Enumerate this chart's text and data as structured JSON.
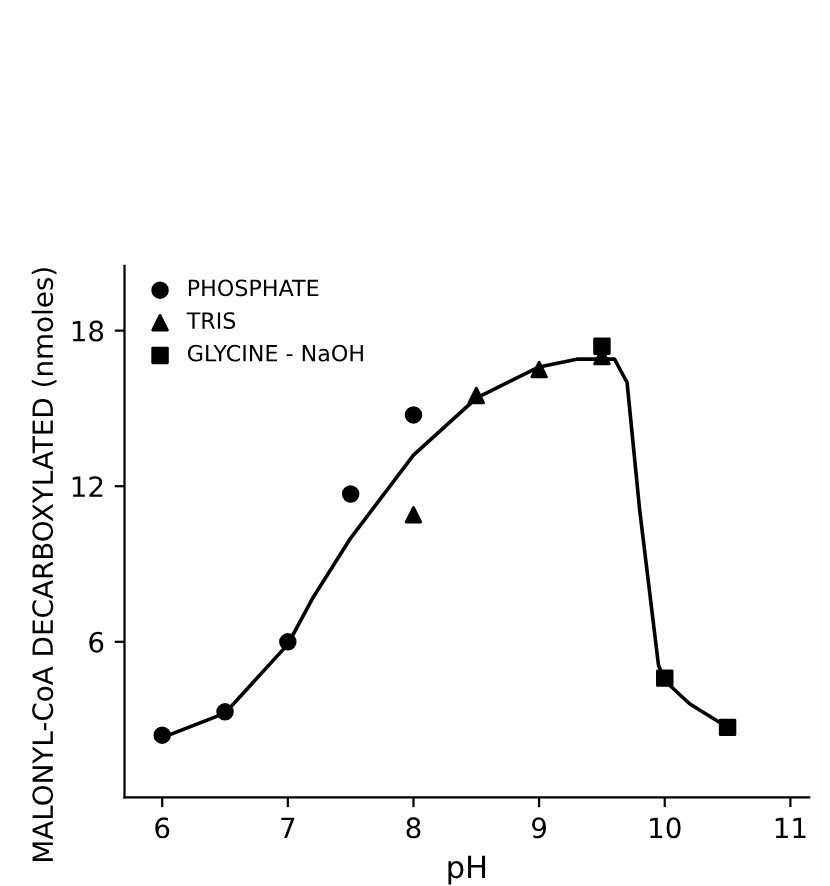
{
  "chart_data": {
    "type": "scatter",
    "xlabel": "pH",
    "ylabel": "MALONYL-CoA DECARBOXYLATED (nmoles)",
    "xlim": [
      5.7,
      11.15
    ],
    "ylim": [
      0,
      20.5
    ],
    "xticks": [
      6,
      7,
      8,
      9,
      10,
      11
    ],
    "yticks": [
      6,
      12,
      18
    ],
    "grid": false,
    "legend": "top left",
    "series": [
      {
        "name": "PHOSPHATE",
        "color": "#000000",
        "marker": "circle",
        "x": [
          6,
          6.5,
          7,
          7.5,
          8
        ],
        "values": [
          2.4,
          3.3,
          6.0,
          11.7,
          14.75
        ]
      },
      {
        "name": "TRIS",
        "color": "#000000",
        "marker": "triangle",
        "x": [
          8,
          8.5,
          9,
          9.5
        ],
        "values": [
          10.9,
          15.5,
          16.5,
          17.0
        ]
      },
      {
        "name": "GLYCINE - NaOH",
        "color": "#000000",
        "marker": "square",
        "x": [
          9.5,
          10,
          10.5
        ],
        "values": [
          17.4,
          4.6,
          2.7
        ]
      },
      {
        "type": "line",
        "color": "#000000",
        "marker": "none",
        "line_style": "solid",
        "x": [
          6,
          6.5,
          7,
          7.2,
          7.5,
          8,
          8.5,
          9,
          9.3,
          9.6,
          9.7,
          9.8,
          9.95,
          10,
          10.2,
          10.5
        ],
        "values": [
          2.3,
          3.25,
          5.9,
          7.7,
          10.0,
          13.2,
          15.4,
          16.6,
          16.9,
          16.9,
          16.0,
          11.1,
          5.1,
          4.5,
          3.6,
          2.7
        ]
      }
    ]
  }
}
